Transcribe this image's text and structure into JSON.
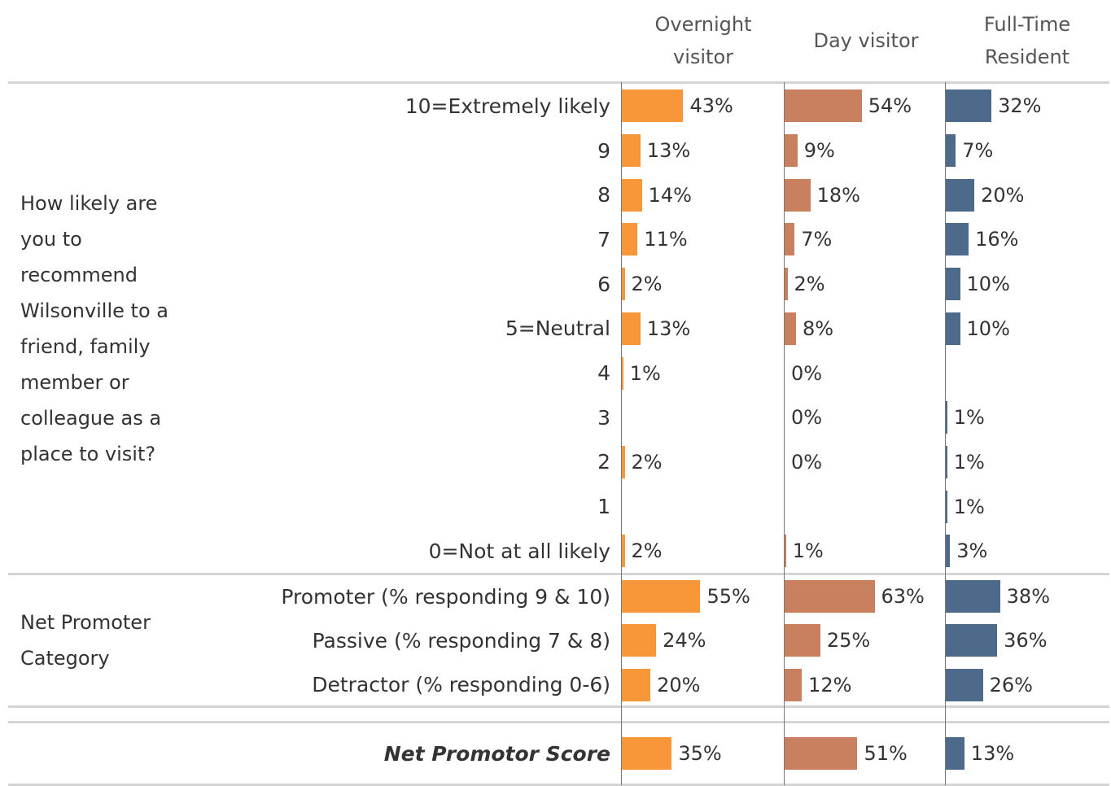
{
  "chart_data": {
    "type": "bar",
    "orientation": "horizontal",
    "xlim": [
      0,
      114
    ],
    "series": [
      {
        "name": "Overnight visitor",
        "color": "#f7973a"
      },
      {
        "name": "Day visitor",
        "color": "#c9805f"
      },
      {
        "name": "Full-Time Resident",
        "color": "#4e6a8a"
      }
    ],
    "groups": [
      {
        "label": "How likely are you to recommend Wilsonville to a friend, family member or colleague as a place to visit?",
        "categories": [
          "10=Extremely likely",
          "9",
          "8",
          "7",
          "6",
          "5=Neutral",
          "4",
          "3",
          "2",
          "1",
          "0=Not at all likely"
        ],
        "data": [
          {
            "values": [
              43,
              13,
              14,
              11,
              2,
              13,
              1,
              null,
              2,
              null,
              2
            ],
            "value_labels": [
              "43%",
              "13%",
              "14%",
              "11%",
              "2%",
              "13%",
              "1%",
              null,
              "2%",
              null,
              "2%"
            ]
          },
          {
            "values": [
              54,
              9,
              18,
              7,
              2,
              8,
              0,
              0,
              0,
              null,
              1
            ],
            "value_labels": [
              "54%",
              "9%",
              "18%",
              "7%",
              "2%",
              "8%",
              "0%",
              "0%",
              "0%",
              null,
              "1%"
            ]
          },
          {
            "values": [
              32,
              7,
              20,
              16,
              10,
              10,
              null,
              1,
              1,
              1,
              3
            ],
            "value_labels": [
              "32%",
              "7%",
              "20%",
              "16%",
              "10%",
              "10%",
              null,
              "1%",
              "1%",
              "1%",
              "3%"
            ]
          }
        ]
      },
      {
        "label": "Net Promoter Category",
        "categories": [
          "Promoter (% responding 9 & 10)",
          "Passive (% responding 7 & 8)",
          "Detractor (% responding 0-6)"
        ],
        "data": [
          {
            "values": [
              55,
              24,
              20
            ],
            "value_labels": [
              "55%",
              "24%",
              "20%"
            ]
          },
          {
            "values": [
              63,
              25,
              12
            ],
            "value_labels": [
              "63%",
              "25%",
              "12%"
            ]
          },
          {
            "values": [
              38,
              36,
              26
            ],
            "value_labels": [
              "38%",
              "36%",
              "26%"
            ]
          }
        ]
      },
      {
        "categories": [
          "Net Promotor Score"
        ],
        "emphasis": true,
        "data": [
          {
            "values": [
              35
            ],
            "value_labels": [
              "35%"
            ]
          },
          {
            "values": [
              51
            ],
            "value_labels": [
              "51%"
            ]
          },
          {
            "values": [
              13
            ],
            "value_labels": [
              "13%"
            ]
          }
        ]
      }
    ]
  }
}
